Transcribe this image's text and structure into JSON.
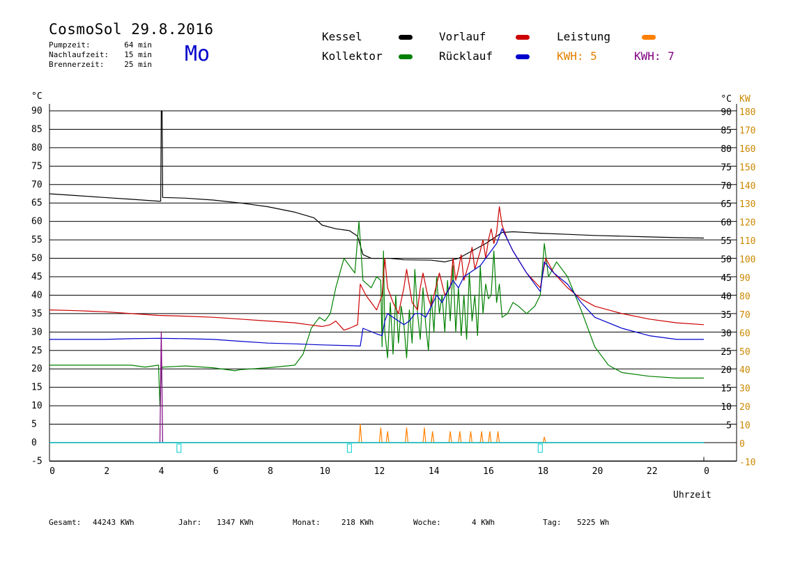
{
  "header": {
    "title": "CosmoSol 29.8.2016",
    "day": "Mo",
    "stats": [
      {
        "label": "Pumpzeit:",
        "value": "64 min"
      },
      {
        "label": "Nachlaufzeit:",
        "value": "15 min"
      },
      {
        "label": "Brennerzeit:",
        "value": "25 min"
      }
    ]
  },
  "legend": {
    "kessel": "Kessel",
    "kollektor": "Kollektor",
    "vorlauf": "Vorlauf",
    "ruecklauf": "Rücklauf",
    "leistung": "Leistung",
    "kwh_a": "KWH: 5",
    "kwh_b": "KWH: 7"
  },
  "footer": {
    "gesamt_label": "Gesamt:",
    "gesamt_value": "44243 KWh",
    "jahr_label": "Jahr:",
    "jahr_value": "1347 KWh",
    "monat_label": "Monat:",
    "monat_value": "218 KWh",
    "woche_label": "Woche:",
    "woche_value": "4 KWh",
    "tag_label": "Tag:",
    "tag_value": "5225 Wh"
  },
  "colors": {
    "kessel": "#000000",
    "kollektor": "#008000",
    "vorlauf": "#cc0000",
    "ruecklauf": "#0000cc",
    "leistung": "#ff8000",
    "kwh_b": "#800080",
    "baseline": "#00cccc",
    "axis_right_kw": "#cc8800"
  },
  "chart_data": {
    "type": "line",
    "xlabel": "Uhrzeit",
    "ylabel_left": "°C",
    "ylabel_right": [
      "°C",
      "KW"
    ],
    "xlim": [
      0,
      24
    ],
    "ylim": [
      -5,
      90
    ],
    "x_ticks": [
      "0",
      "2",
      "4",
      "6",
      "8",
      "10",
      "12",
      "14",
      "16",
      "18",
      "20",
      "22",
      "0"
    ],
    "y_ticks_left": [
      -5,
      0,
      5,
      10,
      15,
      20,
      25,
      30,
      35,
      40,
      45,
      50,
      55,
      60,
      65,
      70,
      75,
      80,
      85,
      90
    ],
    "y_ticks_right_c": [
      5,
      10,
      15,
      20,
      25,
      30,
      35,
      40,
      45,
      50,
      55,
      60,
      65,
      70,
      75,
      80,
      85,
      90
    ],
    "y_ticks_right_kw": [
      -10,
      0,
      10,
      20,
      30,
      40,
      50,
      60,
      70,
      80,
      90,
      100,
      110,
      120,
      130,
      140,
      150,
      160,
      170,
      180
    ],
    "grid": true,
    "series": [
      {
        "name": "Kessel",
        "color": "#000000",
        "points": [
          [
            0,
            67.5
          ],
          [
            1,
            67
          ],
          [
            2,
            66.5
          ],
          [
            3,
            66
          ],
          [
            4,
            65.5
          ],
          [
            4.08,
            65.5
          ],
          [
            4.1,
            90
          ],
          [
            4.13,
            90
          ],
          [
            4.15,
            66.5
          ],
          [
            5,
            66.3
          ],
          [
            6,
            65.8
          ],
          [
            7,
            65
          ],
          [
            8,
            64
          ],
          [
            9,
            62.5
          ],
          [
            9.7,
            61
          ],
          [
            10,
            59
          ],
          [
            10.5,
            58
          ],
          [
            11,
            57.5
          ],
          [
            11.3,
            56
          ],
          [
            11.5,
            51
          ],
          [
            11.8,
            50
          ],
          [
            12.5,
            50
          ],
          [
            13,
            49.6
          ],
          [
            14,
            49.5
          ],
          [
            14.5,
            49
          ],
          [
            15,
            50
          ],
          [
            15.5,
            52
          ],
          [
            16,
            54
          ],
          [
            16.3,
            55.5
          ],
          [
            16.6,
            57
          ],
          [
            17,
            57.2
          ],
          [
            18,
            56.8
          ],
          [
            19,
            56.5
          ],
          [
            20,
            56.2
          ],
          [
            21,
            56
          ],
          [
            22,
            55.8
          ],
          [
            23,
            55.6
          ],
          [
            24,
            55.5
          ]
        ]
      },
      {
        "name": "Kollektor",
        "color": "#008000",
        "points": [
          [
            0,
            21
          ],
          [
            1,
            21
          ],
          [
            2,
            21
          ],
          [
            3,
            21
          ],
          [
            3.5,
            20.5
          ],
          [
            4,
            21
          ],
          [
            4.05,
            10
          ],
          [
            4.1,
            20
          ],
          [
            4.15,
            20.5
          ],
          [
            5,
            20.8
          ],
          [
            6,
            20.3
          ],
          [
            6.8,
            19.5
          ],
          [
            7,
            19.8
          ],
          [
            8,
            20.3
          ],
          [
            9,
            21
          ],
          [
            9.3,
            24
          ],
          [
            9.6,
            31
          ],
          [
            9.9,
            34
          ],
          [
            10.1,
            33
          ],
          [
            10.3,
            35
          ],
          [
            10.5,
            42
          ],
          [
            10.8,
            50
          ],
          [
            11,
            48
          ],
          [
            11.2,
            46
          ],
          [
            11.35,
            60
          ],
          [
            11.5,
            44
          ],
          [
            11.8,
            42
          ],
          [
            12,
            45
          ],
          [
            12.15,
            44
          ],
          [
            12.2,
            26
          ],
          [
            12.25,
            52
          ],
          [
            12.3,
            30
          ],
          [
            12.4,
            23
          ],
          [
            12.5,
            38
          ],
          [
            12.6,
            24
          ],
          [
            12.7,
            40
          ],
          [
            12.8,
            27
          ],
          [
            12.9,
            37
          ],
          [
            13,
            32
          ],
          [
            13.1,
            23
          ],
          [
            13.2,
            36
          ],
          [
            13.3,
            27
          ],
          [
            13.4,
            47
          ],
          [
            13.5,
            35
          ],
          [
            13.6,
            28
          ],
          [
            13.7,
            42
          ],
          [
            13.8,
            32
          ],
          [
            13.9,
            25
          ],
          [
            14,
            40
          ],
          [
            14.1,
            30
          ],
          [
            14.2,
            45
          ],
          [
            14.3,
            35
          ],
          [
            14.4,
            40
          ],
          [
            14.5,
            30
          ],
          [
            14.6,
            44
          ],
          [
            14.7,
            33
          ],
          [
            14.8,
            48
          ],
          [
            14.9,
            30
          ],
          [
            15,
            42
          ],
          [
            15.1,
            29
          ],
          [
            15.2,
            40
          ],
          [
            15.3,
            28
          ],
          [
            15.4,
            46
          ],
          [
            15.5,
            33
          ],
          [
            15.6,
            40
          ],
          [
            15.7,
            29
          ],
          [
            15.8,
            48
          ],
          [
            15.9,
            35
          ],
          [
            16,
            43
          ],
          [
            16.1,
            39
          ],
          [
            16.2,
            40
          ],
          [
            16.3,
            52
          ],
          [
            16.4,
            38
          ],
          [
            16.5,
            43
          ],
          [
            16.6,
            34
          ],
          [
            16.8,
            35
          ],
          [
            17,
            38
          ],
          [
            17.2,
            37
          ],
          [
            17.5,
            35
          ],
          [
            17.8,
            37
          ],
          [
            18,
            40
          ],
          [
            18.15,
            54
          ],
          [
            18.3,
            45
          ],
          [
            18.6,
            49
          ],
          [
            19,
            45
          ],
          [
            19.5,
            36
          ],
          [
            20,
            26
          ],
          [
            20.5,
            21
          ],
          [
            21,
            19
          ],
          [
            22,
            18
          ],
          [
            23,
            17.5
          ],
          [
            24,
            17.5
          ]
        ]
      },
      {
        "name": "Vorlauf",
        "color": "#cc0000",
        "points": [
          [
            0,
            36
          ],
          [
            1,
            35.8
          ],
          [
            2,
            35.5
          ],
          [
            3,
            35
          ],
          [
            4,
            34.5
          ],
          [
            5,
            34.3
          ],
          [
            6,
            34
          ],
          [
            7,
            33.5
          ],
          [
            8,
            33
          ],
          [
            9,
            32.5
          ],
          [
            9.5,
            32
          ],
          [
            10,
            31.5
          ],
          [
            10.3,
            32
          ],
          [
            10.5,
            33
          ],
          [
            10.8,
            30.5
          ],
          [
            11,
            31
          ],
          [
            11.3,
            32
          ],
          [
            11.4,
            43
          ],
          [
            11.6,
            40
          ],
          [
            11.8,
            38
          ],
          [
            12,
            36
          ],
          [
            12.2,
            40
          ],
          [
            12.3,
            50
          ],
          [
            12.4,
            42
          ],
          [
            12.6,
            38
          ],
          [
            12.8,
            35
          ],
          [
            13,
            42
          ],
          [
            13.1,
            47
          ],
          [
            13.3,
            38
          ],
          [
            13.5,
            36
          ],
          [
            13.6,
            42
          ],
          [
            13.7,
            46
          ],
          [
            13.9,
            39
          ],
          [
            14,
            37
          ],
          [
            14.2,
            43
          ],
          [
            14.3,
            46
          ],
          [
            14.5,
            40
          ],
          [
            14.7,
            42
          ],
          [
            14.8,
            50
          ],
          [
            14.9,
            44
          ],
          [
            15,
            47
          ],
          [
            15.1,
            51
          ],
          [
            15.2,
            44
          ],
          [
            15.4,
            49
          ],
          [
            15.5,
            53
          ],
          [
            15.6,
            47
          ],
          [
            15.8,
            52
          ],
          [
            15.9,
            55
          ],
          [
            16,
            50
          ],
          [
            16.1,
            55
          ],
          [
            16.2,
            58
          ],
          [
            16.3,
            54
          ],
          [
            16.4,
            57
          ],
          [
            16.5,
            64
          ],
          [
            16.6,
            59
          ],
          [
            16.8,
            55
          ],
          [
            17,
            52
          ],
          [
            17.5,
            46
          ],
          [
            18,
            42
          ],
          [
            18.2,
            50
          ],
          [
            18.5,
            46
          ],
          [
            19,
            42
          ],
          [
            19.5,
            39
          ],
          [
            20,
            37
          ],
          [
            21,
            35
          ],
          [
            22,
            33.5
          ],
          [
            23,
            32.5
          ],
          [
            24,
            32
          ]
        ]
      },
      {
        "name": "Rücklauf",
        "color": "#0000cc",
        "points": [
          [
            0,
            28
          ],
          [
            1,
            28
          ],
          [
            2,
            28
          ],
          [
            3,
            28.2
          ],
          [
            4,
            28.3
          ],
          [
            5,
            28.2
          ],
          [
            6,
            28
          ],
          [
            7,
            27.5
          ],
          [
            8,
            27
          ],
          [
            9,
            26.8
          ],
          [
            10,
            26.5
          ],
          [
            11,
            26.3
          ],
          [
            11.4,
            26.2
          ],
          [
            11.5,
            31
          ],
          [
            12,
            29.5
          ],
          [
            12.2,
            29
          ],
          [
            12.3,
            33
          ],
          [
            12.4,
            35
          ],
          [
            12.6,
            34
          ],
          [
            12.8,
            33
          ],
          [
            13,
            32
          ],
          [
            13.2,
            33
          ],
          [
            13.4,
            35
          ],
          [
            13.6,
            35
          ],
          [
            13.8,
            34
          ],
          [
            14,
            37
          ],
          [
            14.2,
            40
          ],
          [
            14.4,
            38
          ],
          [
            14.6,
            41
          ],
          [
            14.8,
            44
          ],
          [
            15,
            42
          ],
          [
            15.2,
            45
          ],
          [
            15.4,
            46
          ],
          [
            15.6,
            47
          ],
          [
            15.8,
            48
          ],
          [
            16,
            50
          ],
          [
            16.2,
            52
          ],
          [
            16.4,
            54
          ],
          [
            16.6,
            58
          ],
          [
            17,
            52
          ],
          [
            17.5,
            46
          ],
          [
            18,
            41
          ],
          [
            18.15,
            49
          ],
          [
            18.5,
            46
          ],
          [
            19,
            43
          ],
          [
            19.5,
            38
          ],
          [
            20,
            34
          ],
          [
            21,
            31
          ],
          [
            22,
            29
          ],
          [
            23,
            28
          ],
          [
            24,
            28
          ]
        ]
      },
      {
        "name": "Leistung",
        "color": "#ff8000",
        "points": [
          [
            0,
            0
          ],
          [
            11.35,
            0
          ],
          [
            11.4,
            5
          ],
          [
            11.45,
            0
          ],
          [
            12.1,
            0
          ],
          [
            12.15,
            4
          ],
          [
            12.2,
            0
          ],
          [
            12.35,
            0
          ],
          [
            12.4,
            3
          ],
          [
            12.45,
            0
          ],
          [
            13.05,
            0
          ],
          [
            13.1,
            4
          ],
          [
            13.15,
            0
          ],
          [
            13.7,
            0
          ],
          [
            13.75,
            4
          ],
          [
            13.8,
            0
          ],
          [
            14,
            0
          ],
          [
            14.05,
            3
          ],
          [
            14.1,
            0
          ],
          [
            14.65,
            0
          ],
          [
            14.7,
            3
          ],
          [
            14.75,
            0
          ],
          [
            15,
            0
          ],
          [
            15.05,
            3
          ],
          [
            15.1,
            0
          ],
          [
            15.4,
            0
          ],
          [
            15.45,
            3
          ],
          [
            15.5,
            0
          ],
          [
            15.8,
            0
          ],
          [
            15.85,
            3
          ],
          [
            15.9,
            0
          ],
          [
            16.1,
            0
          ],
          [
            16.15,
            3
          ],
          [
            16.2,
            0
          ],
          [
            16.4,
            0
          ],
          [
            16.45,
            3
          ],
          [
            16.5,
            0
          ],
          [
            18.1,
            0
          ],
          [
            18.15,
            1.5
          ],
          [
            18.2,
            0
          ],
          [
            24,
            0
          ]
        ]
      },
      {
        "name": "KWH: 7",
        "color": "#800080",
        "points": [
          [
            0,
            0
          ],
          [
            4.05,
            0
          ],
          [
            4.1,
            30
          ],
          [
            4.15,
            0
          ],
          [
            24,
            0
          ]
        ]
      }
    ],
    "markers": [
      4.75,
      11,
      18
    ]
  }
}
